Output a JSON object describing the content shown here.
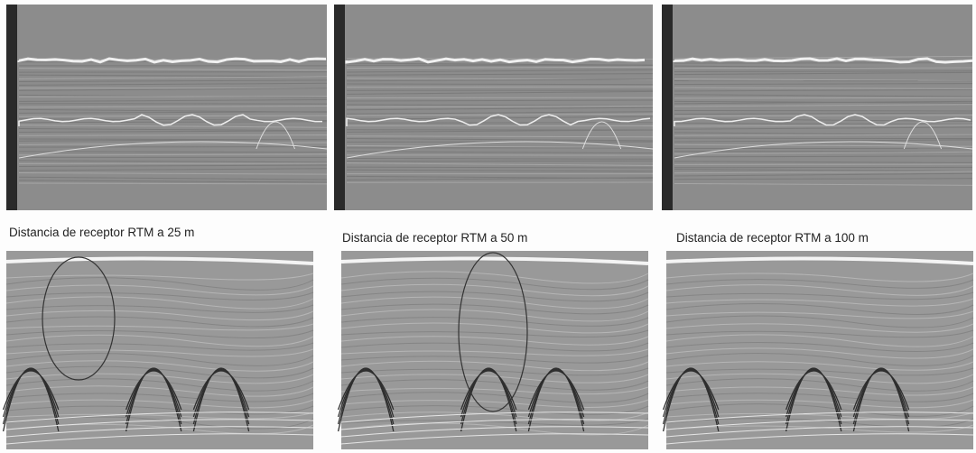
{
  "captions": [
    "Distancia de receptor RTM a 25 m",
    "Distancia de receptor RTM a 50 m",
    "Distancia de receptor RTM a 100 m"
  ]
}
